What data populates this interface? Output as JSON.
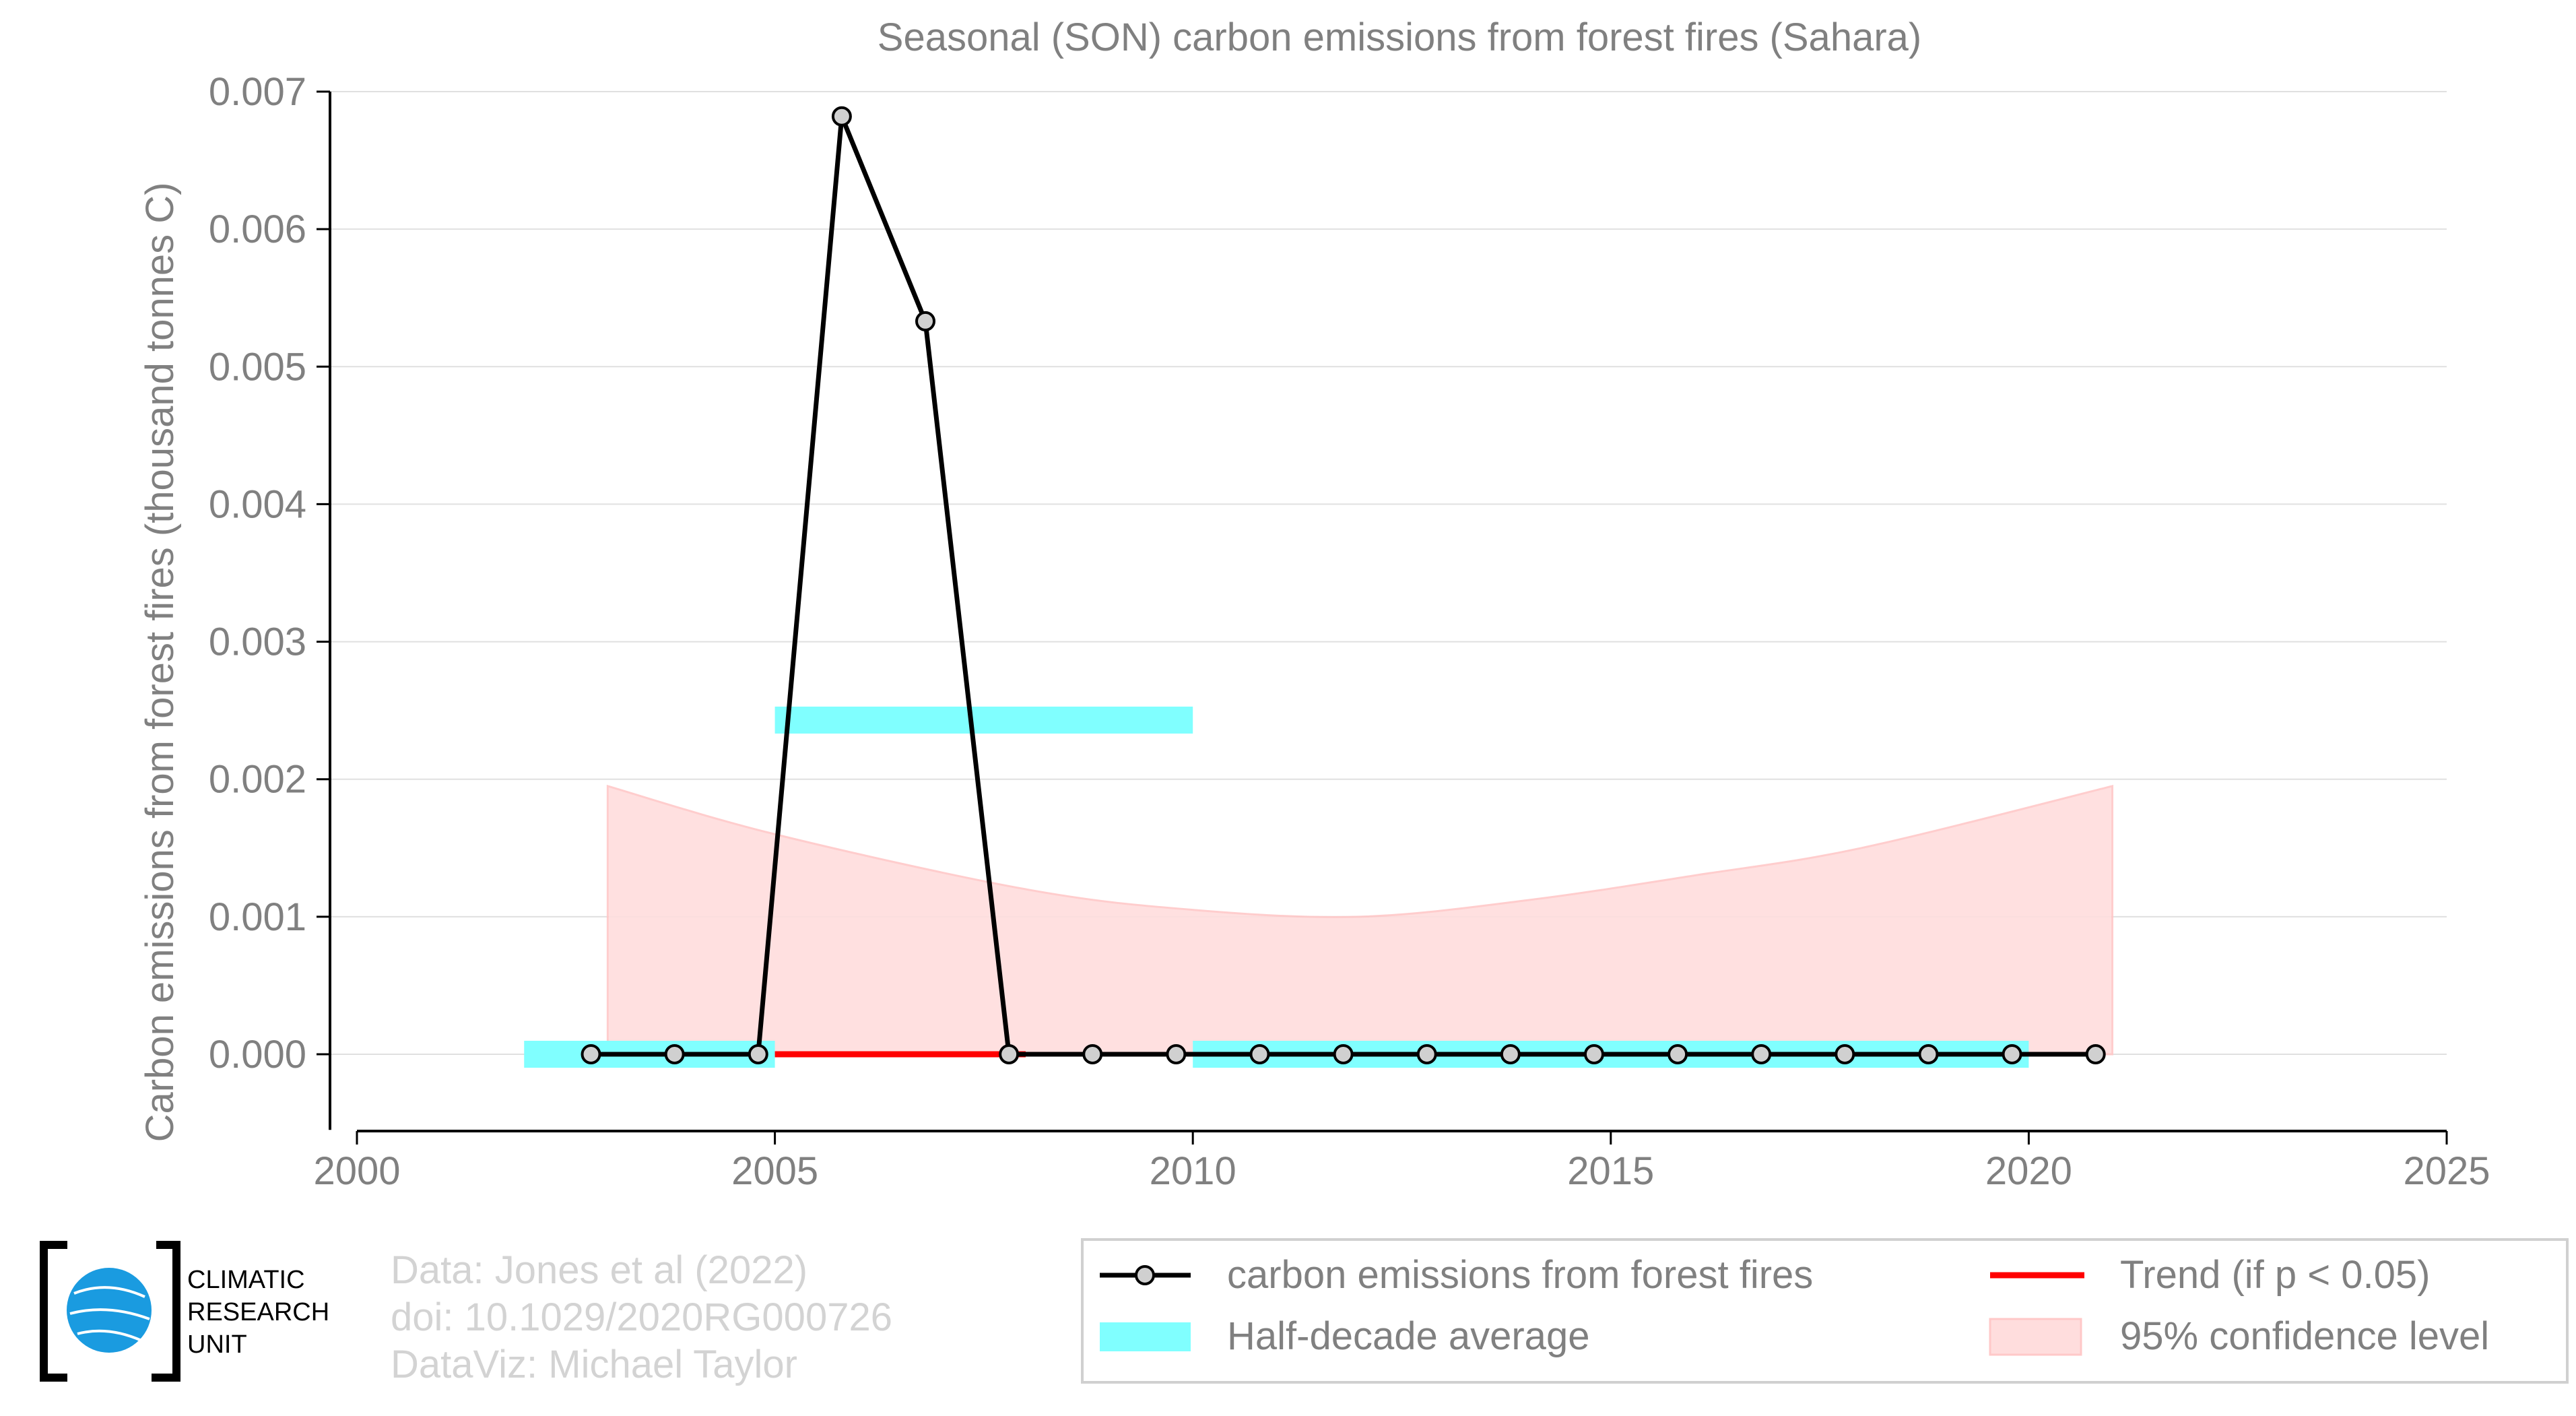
{
  "chart_data": {
    "type": "line",
    "title": "Seasonal (SON) carbon emissions from forest fires (Sahara)",
    "xlabel": "",
    "ylabel": "Carbon emissions from forest fires (thousand tonnes C)",
    "xlim": [
      2000,
      2025
    ],
    "ylim": [
      -0.00055,
      0.007
    ],
    "x_ticks": [
      "2000",
      "2005",
      "2010",
      "2015",
      "2020",
      "2025"
    ],
    "y_ticks": [
      "0.000",
      "0.001",
      "0.002",
      "0.003",
      "0.004",
      "0.005",
      "0.006",
      "0.007"
    ],
    "grid": "horizontal",
    "series": [
      {
        "name": "carbon emissions from forest fires",
        "color": "#000000",
        "x": [
          2003,
          2004,
          2005,
          2006,
          2007,
          2008,
          2009,
          2010,
          2011,
          2012,
          2013,
          2014,
          2015,
          2016,
          2017,
          2018,
          2019,
          2020,
          2021
        ],
        "y": [
          0,
          0,
          0,
          0.00682,
          0.00533,
          0,
          0,
          0,
          0,
          0,
          0,
          0,
          0,
          0,
          0,
          0,
          0,
          0,
          0
        ]
      }
    ],
    "half_decade_average": {
      "name": "Half-decade average",
      "color": "#80ffff",
      "segments": [
        {
          "x0": 2002,
          "x1": 2005,
          "y": 0
        },
        {
          "x0": 2005,
          "x1": 2010,
          "y": 0.00243
        },
        {
          "x0": 2010,
          "x1": 2020,
          "y": 0
        }
      ]
    },
    "trend": {
      "name": "Trend (if p < 0.05)",
      "color": "#ff0000",
      "x": [
        2005,
        2008
      ],
      "y": [
        0,
        0
      ]
    },
    "confidence_band": {
      "name": "95% confidence level",
      "color": "#ffdddd",
      "x": [
        2003,
        2005,
        2008,
        2010,
        2012,
        2014,
        2016,
        2018,
        2021
      ],
      "upper": [
        0.00195,
        0.0016,
        0.0012,
        0.00105,
        0.001,
        0.00112,
        0.0013,
        0.0015,
        0.00195
      ],
      "lower": [
        0,
        0,
        0,
        0,
        0,
        0,
        0,
        0,
        0
      ]
    },
    "legend_position": "bottom-right",
    "legend": [
      "carbon emissions from forest fires",
      "Trend (if p < 0.05)",
      "Half-decade average",
      "95% confidence level"
    ]
  },
  "footer": {
    "logo_lines": [
      "CLIMATIC",
      "RESEARCH",
      "UNIT"
    ],
    "credits": [
      "Data: Jones et al (2022)",
      "doi: 10.1029/2020RG000726",
      "DataViz: Michael Taylor"
    ]
  },
  "colors": {
    "axis": "#000000",
    "text": "#808080",
    "grid": "#e0e0e0",
    "credits": "#d3d3d3",
    "logo_globe": "#1a9be0"
  }
}
